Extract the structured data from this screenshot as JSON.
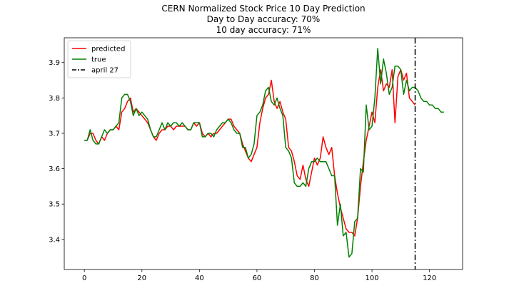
{
  "chart_data": {
    "type": "line",
    "title_lines": [
      "CERN Normalized Stock Price 10 Day Prediction",
      "Day to Day accuracy: 70%",
      "10 day accuracy: 71%"
    ],
    "xlabel": "",
    "ylabel": "",
    "xlim": [
      -7,
      131.5
    ],
    "ylim": [
      3.315,
      3.97
    ],
    "x_ticks": [
      0,
      20,
      40,
      60,
      80,
      100,
      120
    ],
    "y_ticks": [
      3.4,
      3.5,
      3.6,
      3.7,
      3.8,
      3.9
    ],
    "legend_position": "upper-left",
    "series": [
      {
        "name": "predicted",
        "color": "#ff0000",
        "x_start": 0,
        "values": [
          3.68,
          3.68,
          3.7,
          3.7,
          3.68,
          3.67,
          3.69,
          3.68,
          3.7,
          3.71,
          3.71,
          3.72,
          3.71,
          3.76,
          3.77,
          3.79,
          3.8,
          3.76,
          3.77,
          3.76,
          3.75,
          3.74,
          3.73,
          3.71,
          3.69,
          3.68,
          3.7,
          3.71,
          3.71,
          3.72,
          3.72,
          3.71,
          3.72,
          3.72,
          3.72,
          3.72,
          3.71,
          3.71,
          3.73,
          3.72,
          3.73,
          3.7,
          3.69,
          3.7,
          3.69,
          3.7,
          3.7,
          3.71,
          3.72,
          3.73,
          3.74,
          3.74,
          3.72,
          3.71,
          3.7,
          3.67,
          3.65,
          3.63,
          3.62,
          3.64,
          3.66,
          3.73,
          3.77,
          3.8,
          3.81,
          3.85,
          3.79,
          3.77,
          3.79,
          3.76,
          3.74,
          3.66,
          3.65,
          3.62,
          3.58,
          3.57,
          3.61,
          3.57,
          3.55,
          3.59,
          3.63,
          3.61,
          3.63,
          3.69,
          3.66,
          3.64,
          3.66,
          3.58,
          3.53,
          3.49,
          3.46,
          3.43,
          3.42,
          3.42,
          3.41,
          3.46,
          3.55,
          3.62,
          3.68,
          3.72,
          3.76,
          3.73,
          3.83,
          3.88,
          3.82,
          3.84,
          3.83,
          3.88,
          3.73,
          3.86,
          3.88,
          3.85,
          3.87,
          3.8,
          3.79,
          3.78
        ]
      },
      {
        "name": "true",
        "color": "#008000",
        "x_start": 0,
        "values": [
          3.68,
          3.68,
          3.71,
          3.68,
          3.67,
          3.67,
          3.69,
          3.71,
          3.7,
          3.71,
          3.71,
          3.72,
          3.73,
          3.8,
          3.81,
          3.81,
          3.79,
          3.75,
          3.77,
          3.75,
          3.76,
          3.75,
          3.74,
          3.71,
          3.69,
          3.69,
          3.71,
          3.73,
          3.71,
          3.73,
          3.72,
          3.73,
          3.73,
          3.72,
          3.73,
          3.72,
          3.71,
          3.71,
          3.73,
          3.73,
          3.73,
          3.69,
          3.69,
          3.7,
          3.7,
          3.69,
          3.71,
          3.72,
          3.73,
          3.73,
          3.74,
          3.73,
          3.71,
          3.7,
          3.7,
          3.66,
          3.66,
          3.63,
          3.64,
          3.67,
          3.75,
          3.76,
          3.78,
          3.82,
          3.83,
          3.79,
          3.78,
          3.8,
          3.77,
          3.75,
          3.66,
          3.65,
          3.63,
          3.56,
          3.55,
          3.55,
          3.56,
          3.55,
          3.6,
          3.62,
          3.62,
          3.63,
          3.62,
          3.62,
          3.62,
          3.6,
          3.58,
          3.58,
          3.44,
          3.5,
          3.41,
          3.42,
          3.35,
          3.36,
          3.45,
          3.46,
          3.6,
          3.59,
          3.78,
          3.71,
          3.72,
          3.8,
          3.94,
          3.84,
          3.91,
          3.87,
          3.81,
          3.83,
          3.89,
          3.89,
          3.88,
          3.81,
          3.85,
          3.82,
          3.83,
          3.83,
          3.82,
          3.8,
          3.79,
          3.79,
          3.78,
          3.78,
          3.77,
          3.77,
          3.76,
          3.76
        ]
      },
      {
        "name": "april 27",
        "color": "#000000",
        "style": "dash-dot",
        "vertical_x": 115
      }
    ]
  }
}
